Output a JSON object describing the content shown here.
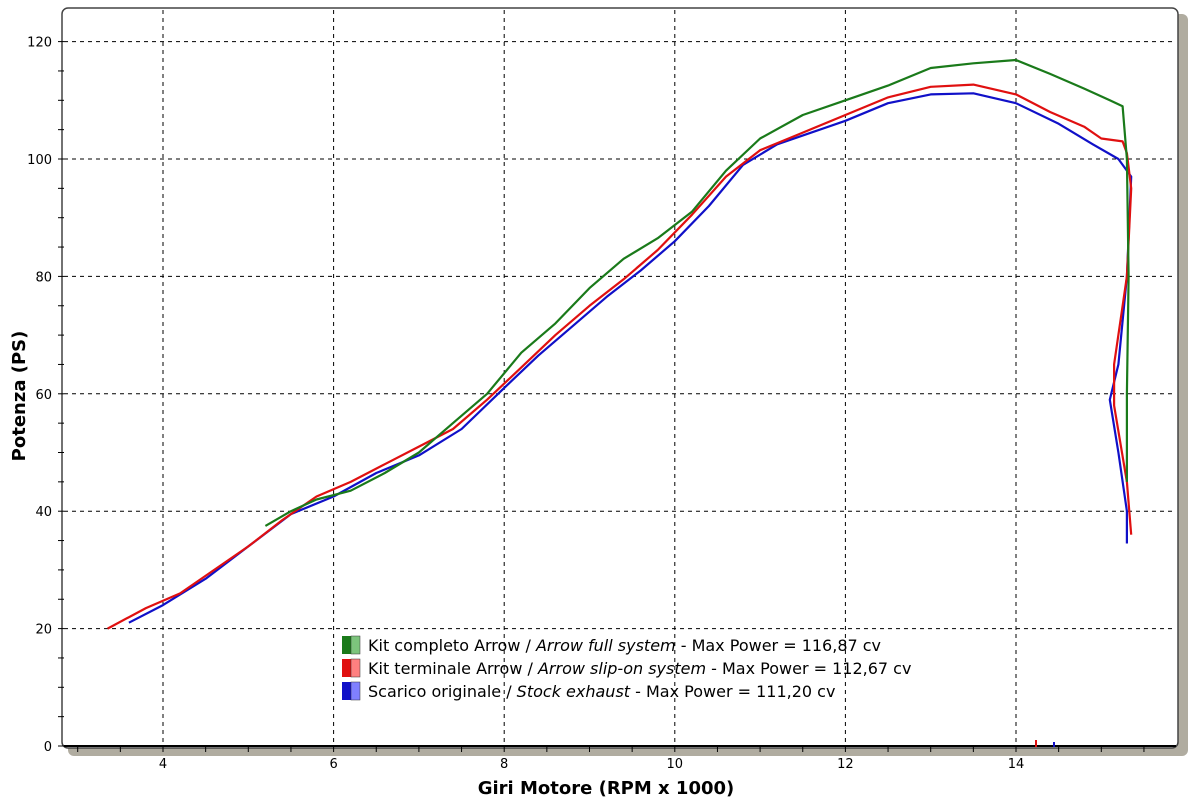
{
  "chart_data": {
    "type": "line",
    "title": "",
    "xlabel": "Giri Motore (RPM x 1000)",
    "ylabel": "Potenza (PS)",
    "xlim": [
      2.85,
      15.85
    ],
    "ylim": [
      0,
      125
    ],
    "xticks": [
      4,
      6,
      8,
      10,
      12,
      14
    ],
    "yticks": [
      0,
      20,
      40,
      60,
      80,
      100,
      120
    ],
    "grid": true,
    "legend_position": "bottom-center",
    "series": [
      {
        "name": "Kit completo Arrow / Arrow full system - Max Power = 116,87 cv",
        "label_main": "Kit completo Arrow / ",
        "label_italic": "Arrow full system",
        "label_tail": " - Max Power = 116,87 cv",
        "color": "#1a7a1a",
        "x": [
          5.2,
          5.5,
          5.8,
          6.2,
          6.6,
          7.0,
          7.4,
          7.8,
          8.2,
          8.6,
          9.0,
          9.4,
          9.8,
          10.2,
          10.6,
          11.0,
          11.5,
          12.0,
          12.5,
          13.0,
          13.5,
          14.0,
          14.4,
          14.8,
          15.1,
          15.25,
          15.3,
          15.32,
          15.3,
          15.3
        ],
        "y": [
          37.5,
          40,
          42,
          43.5,
          46.5,
          50,
          55,
          60,
          67,
          72,
          78,
          83,
          86.5,
          91,
          98,
          103.5,
          107.5,
          110,
          112.5,
          115.5,
          116.3,
          116.87,
          114.5,
          112,
          110,
          109,
          100,
          80,
          60,
          45
        ]
      },
      {
        "name": "Kit terminale Arrow / Arrow slip-on system - Max Power = 112,67 cv",
        "label_main": "Kit terminale Arrow / ",
        "label_italic": "Arrow slip-on system",
        "label_tail": " - Max Power = 112,67 cv",
        "color": "#e01010",
        "x": [
          3.35,
          3.8,
          4.2,
          4.6,
          5.0,
          5.4,
          5.8,
          6.2,
          6.6,
          7.0,
          7.4,
          7.8,
          8.2,
          8.6,
          9.0,
          9.4,
          9.8,
          10.2,
          10.6,
          11.0,
          11.5,
          12.0,
          12.5,
          13.0,
          13.5,
          14.0,
          14.4,
          14.8,
          15.0,
          15.25,
          15.3,
          15.35,
          15.3,
          15.15,
          15.15,
          15.3,
          15.35
        ],
        "y": [
          20,
          23.5,
          26,
          30,
          34,
          38.5,
          42.5,
          45,
          48,
          51,
          54,
          59,
          64.5,
          70,
          75,
          79.5,
          84.5,
          90.5,
          97,
          101.5,
          104.5,
          107.5,
          110.5,
          112.3,
          112.67,
          111,
          108,
          105.5,
          103.5,
          103,
          101,
          95,
          80,
          65,
          58,
          45,
          36
        ]
      },
      {
        "name": "Scarico originale / Stock exhaust - Max Power = 111,20 cv",
        "label_main": "Scarico originale / ",
        "label_italic": "Stock exhaust",
        "label_tail": " - Max Power = 111,20 cv",
        "color": "#1010c8",
        "x": [
          3.6,
          4.0,
          4.5,
          5.0,
          5.5,
          6.0,
          6.5,
          7.0,
          7.5,
          8.0,
          8.4,
          8.8,
          9.2,
          9.6,
          10.0,
          10.4,
          10.8,
          11.2,
          11.6,
          12.0,
          12.5,
          13.0,
          13.5,
          14.0,
          14.5,
          14.9,
          15.2,
          15.35,
          15.3,
          15.2,
          15.1,
          15.2,
          15.3,
          15.3
        ],
        "y": [
          21,
          24,
          28.5,
          34,
          39.5,
          42.5,
          46.5,
          49.5,
          54,
          61,
          66.5,
          71.5,
          76.5,
          81,
          86,
          92,
          99,
          102.5,
          104.5,
          106.5,
          109.5,
          111,
          111.2,
          109.5,
          106,
          102.5,
          100,
          97,
          80,
          65,
          59,
          50,
          40,
          34.5
        ]
      }
    ]
  }
}
